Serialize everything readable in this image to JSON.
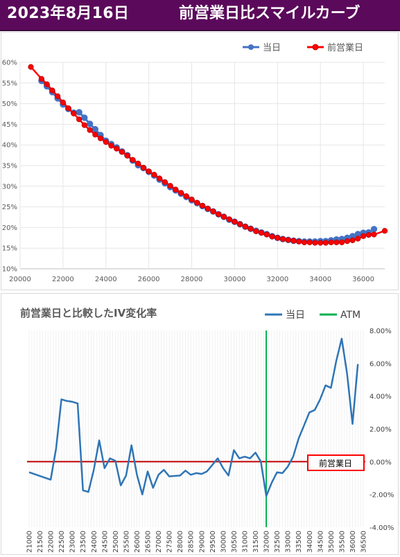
{
  "header": {
    "date": "2023年8月16日",
    "title": "前営業日比スマイルカーブ"
  },
  "colors": {
    "header_bg": "#5b0a5b",
    "today": "#4472c4",
    "prev_day": "#ff0000",
    "atm": "#00b050",
    "zero_line": "#c00000"
  },
  "chart_data": [
    {
      "type": "line",
      "title": "",
      "xlabel": "",
      "ylabel": "",
      "xlim": [
        20000,
        37000
      ],
      "ylim": [
        0.1,
        0.6
      ],
      "x_ticks": [
        "20000",
        "22000",
        "24000",
        "26000",
        "28000",
        "30000",
        "32000",
        "34000",
        "36000"
      ],
      "y_ticks": [
        "10%",
        "15%",
        "20%",
        "25%",
        "30%",
        "35%",
        "40%",
        "45%",
        "50%",
        "55%",
        "60%"
      ],
      "legend_position": "top-right",
      "grid": true,
      "series": [
        {
          "name": "当日",
          "color": "#4472c4",
          "marker": "circle",
          "points": [
            [
              21000,
              0.555
            ],
            [
              21250,
              0.542
            ],
            [
              21500,
              0.528
            ],
            [
              21750,
              0.513
            ],
            [
              22000,
              0.498
            ],
            [
              22250,
              0.487
            ],
            [
              22500,
              0.478
            ],
            [
              22750,
              0.479
            ],
            [
              23000,
              0.466
            ],
            [
              23250,
              0.451
            ],
            [
              23500,
              0.438
            ],
            [
              23750,
              0.424
            ],
            [
              24000,
              0.41
            ],
            [
              24250,
              0.402
            ],
            [
              24500,
              0.394
            ],
            [
              24750,
              0.384
            ],
            [
              25000,
              0.375
            ],
            [
              25250,
              0.362
            ],
            [
              25500,
              0.351
            ],
            [
              25750,
              0.344
            ],
            [
              26000,
              0.335
            ],
            [
              26250,
              0.326
            ],
            [
              26500,
              0.316
            ],
            [
              26750,
              0.307
            ],
            [
              27000,
              0.298
            ],
            [
              27250,
              0.29
            ],
            [
              27500,
              0.282
            ],
            [
              27750,
              0.274
            ],
            [
              28000,
              0.266
            ],
            [
              28250,
              0.259
            ],
            [
              28500,
              0.252
            ],
            [
              28750,
              0.245
            ],
            [
              29000,
              0.239
            ],
            [
              29250,
              0.232
            ],
            [
              29500,
              0.226
            ],
            [
              29750,
              0.219
            ],
            [
              30000,
              0.214
            ],
            [
              30250,
              0.208
            ],
            [
              30500,
              0.202
            ],
            [
              30750,
              0.197
            ],
            [
              31000,
              0.192
            ],
            [
              31250,
              0.188
            ],
            [
              31500,
              0.184
            ],
            [
              31750,
              0.179
            ],
            [
              32000,
              0.175
            ],
            [
              32250,
              0.172
            ],
            [
              32500,
              0.17
            ],
            [
              32750,
              0.168
            ],
            [
              33000,
              0.167
            ],
            [
              33250,
              0.166
            ],
            [
              33500,
              0.166
            ],
            [
              33750,
              0.166
            ],
            [
              34000,
              0.167
            ],
            [
              34250,
              0.167
            ],
            [
              34500,
              0.169
            ],
            [
              34750,
              0.171
            ],
            [
              35000,
              0.172
            ],
            [
              35250,
              0.175
            ],
            [
              35500,
              0.179
            ],
            [
              35750,
              0.184
            ],
            [
              36000,
              0.187
            ],
            [
              36250,
              0.188
            ],
            [
              36500,
              0.196
            ]
          ]
        },
        {
          "name": "前営業日",
          "color": "#ff0000",
          "marker": "circle",
          "points": [
            [
              20500,
              0.589
            ],
            [
              21000,
              0.56
            ],
            [
              21250,
              0.547
            ],
            [
              21500,
              0.532
            ],
            [
              21750,
              0.518
            ],
            [
              22000,
              0.503
            ],
            [
              22250,
              0.489
            ],
            [
              22500,
              0.476
            ],
            [
              22750,
              0.462
            ],
            [
              23000,
              0.448
            ],
            [
              23250,
              0.436
            ],
            [
              23500,
              0.425
            ],
            [
              23750,
              0.416
            ],
            [
              24000,
              0.407
            ],
            [
              24250,
              0.398
            ],
            [
              24500,
              0.391
            ],
            [
              24750,
              0.383
            ],
            [
              25000,
              0.374
            ],
            [
              25250,
              0.364
            ],
            [
              25500,
              0.355
            ],
            [
              25750,
              0.345
            ],
            [
              26000,
              0.336
            ],
            [
              26250,
              0.328
            ],
            [
              26500,
              0.319
            ],
            [
              26750,
              0.31
            ],
            [
              27000,
              0.301
            ],
            [
              27250,
              0.292
            ],
            [
              27500,
              0.284
            ],
            [
              27750,
              0.276
            ],
            [
              28000,
              0.268
            ],
            [
              28250,
              0.26
            ],
            [
              28500,
              0.253
            ],
            [
              28750,
              0.246
            ],
            [
              29000,
              0.239
            ],
            [
              29250,
              0.232
            ],
            [
              29500,
              0.226
            ],
            [
              29750,
              0.22
            ],
            [
              30000,
              0.214
            ],
            [
              30250,
              0.208
            ],
            [
              30500,
              0.202
            ],
            [
              30750,
              0.197
            ],
            [
              31000,
              0.191
            ],
            [
              31250,
              0.187
            ],
            [
              31500,
              0.183
            ],
            [
              31750,
              0.178
            ],
            [
              32000,
              0.175
            ],
            [
              32250,
              0.172
            ],
            [
              32500,
              0.17
            ],
            [
              32750,
              0.168
            ],
            [
              33000,
              0.166
            ],
            [
              33250,
              0.164
            ],
            [
              33500,
              0.164
            ],
            [
              33750,
              0.163
            ],
            [
              34000,
              0.163
            ],
            [
              34250,
              0.163
            ],
            [
              34500,
              0.164
            ],
            [
              34750,
              0.164
            ],
            [
              35000,
              0.164
            ],
            [
              35250,
              0.167
            ],
            [
              35500,
              0.169
            ],
            [
              35750,
              0.173
            ],
            [
              36000,
              0.179
            ],
            [
              36250,
              0.182
            ],
            [
              36500,
              0.183
            ],
            [
              37000,
              0.192
            ]
          ]
        }
      ]
    },
    {
      "type": "line",
      "title": "前営業日と比較したIV変化率",
      "xlabel": "",
      "ylabel": "",
      "ylim": [
        -0.04,
        0.08
      ],
      "y_ticks": [
        "8.00%",
        "6.00%",
        "4.00%",
        "2.00%",
        "0.00%",
        "-2.00%",
        "-4.00%"
      ],
      "x_ticks": [
        "21000",
        "21500",
        "22000",
        "22500",
        "23000",
        "23500",
        "24000",
        "24500",
        "25000",
        "25500",
        "26000",
        "26500",
        "27000",
        "27500",
        "28000",
        "28500",
        "29000",
        "29500",
        "30000",
        "30500",
        "31000",
        "31500",
        "32000",
        "32500",
        "33000",
        "33500",
        "34000",
        "34500",
        "35000",
        "35500",
        "36000",
        "36500"
      ],
      "legend_position": "top-right",
      "grid": true,
      "atm": {
        "label": "ATM",
        "strike": 32000,
        "color": "#00b050"
      },
      "reference": {
        "label": "前営業日",
        "value": 0.0,
        "color": "#c00000"
      },
      "series": [
        {
          "name": "当日",
          "color": "#2e75b6",
          "points": [
            [
              21000,
              -0.0065
            ],
            [
              22000,
              -0.011
            ],
            [
              22250,
              0.008
            ],
            [
              22500,
              0.038
            ],
            [
              22750,
              0.037
            ],
            [
              23000,
              0.0365
            ],
            [
              23250,
              0.0355
            ],
            [
              23500,
              -0.0175
            ],
            [
              23750,
              -0.0185
            ],
            [
              24000,
              -0.005
            ],
            [
              24250,
              0.013
            ],
            [
              24500,
              -0.004
            ],
            [
              24750,
              0.002
            ],
            [
              25000,
              0.0005
            ],
            [
              25250,
              -0.0145
            ],
            [
              25500,
              -0.0085
            ],
            [
              25750,
              0.01
            ],
            [
              26000,
              -0.008
            ],
            [
              26250,
              -0.02
            ],
            [
              26500,
              -0.006
            ],
            [
              26750,
              -0.016
            ],
            [
              27000,
              -0.008
            ],
            [
              27250,
              -0.005
            ],
            [
              27500,
              -0.009
            ],
            [
              28000,
              -0.0085
            ],
            [
              28250,
              -0.0055
            ],
            [
              28500,
              -0.008
            ],
            [
              28750,
              -0.007
            ],
            [
              29000,
              -0.0075
            ],
            [
              29250,
              -0.006
            ],
            [
              29500,
              -0.002
            ],
            [
              29750,
              0.002
            ],
            [
              30000,
              -0.004
            ],
            [
              30250,
              -0.0085
            ],
            [
              30500,
              0.007
            ],
            [
              30750,
              0.002
            ],
            [
              31000,
              0.003
            ],
            [
              31250,
              0.002
            ],
            [
              31500,
              0.0055
            ],
            [
              31750,
              0.0
            ],
            [
              32000,
              -0.021
            ],
            [
              32250,
              -0.013
            ],
            [
              32500,
              -0.0065
            ],
            [
              32750,
              -0.007
            ],
            [
              33000,
              -0.003
            ],
            [
              33250,
              0.003
            ],
            [
              33500,
              0.014
            ],
            [
              33750,
              0.022
            ],
            [
              34000,
              0.03
            ],
            [
              34250,
              0.0315
            ],
            [
              34500,
              0.038
            ],
            [
              34750,
              0.0465
            ],
            [
              35000,
              0.045
            ],
            [
              35250,
              0.0615
            ],
            [
              35500,
              0.075
            ],
            [
              35750,
              0.0535
            ],
            [
              36000,
              0.023
            ],
            [
              36250,
              0.0595
            ]
          ]
        }
      ]
    }
  ]
}
